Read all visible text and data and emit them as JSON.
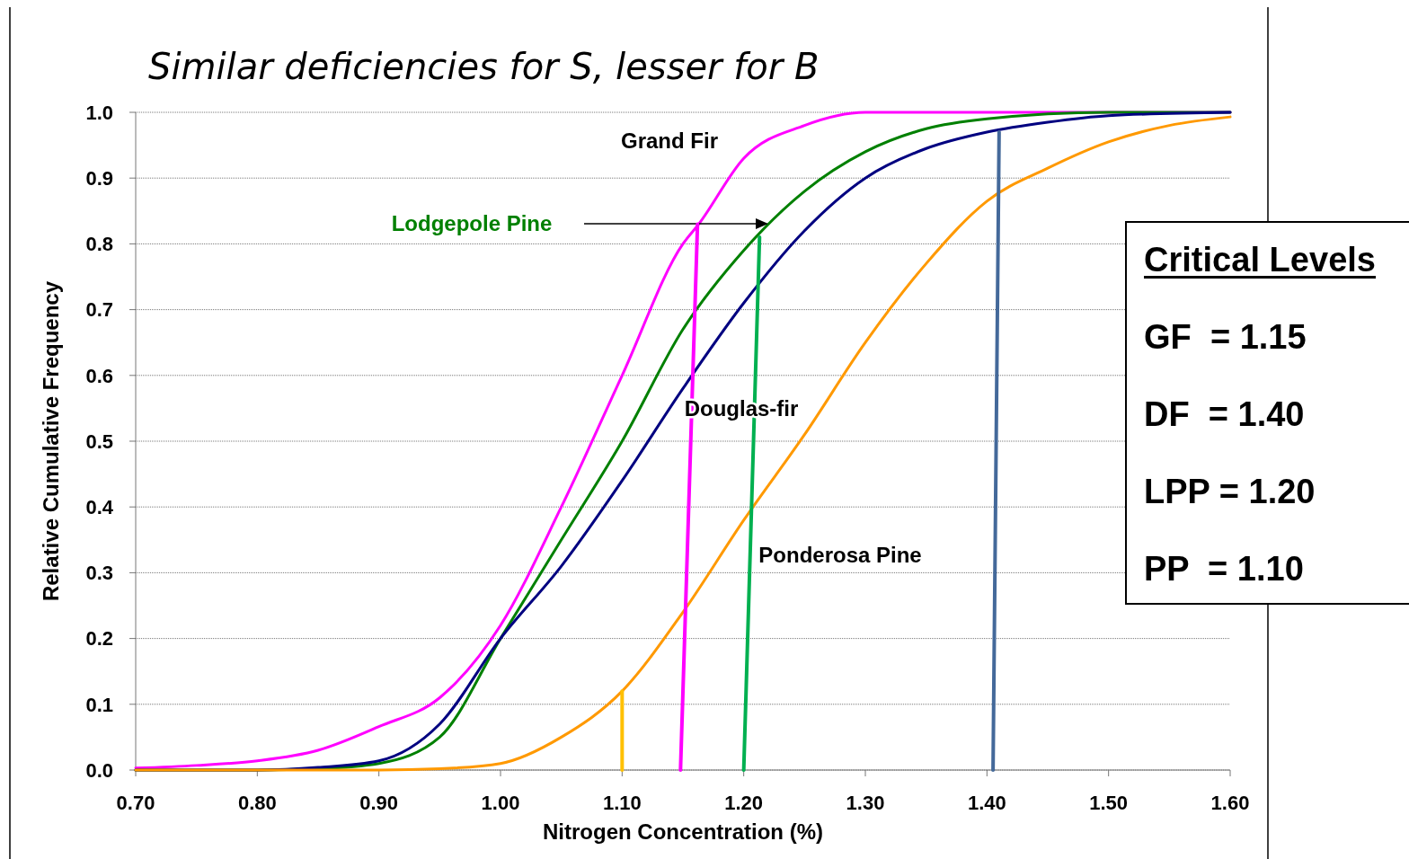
{
  "chart_data": {
    "type": "line",
    "title": "Similar deficiencies for S, lesser for B",
    "xlabel": "Nitrogen Concentration (%)",
    "ylabel": "Relative Cumulative Frequency",
    "xlim": [
      0.7,
      1.6
    ],
    "xticks": [
      {
        "value": 0.7,
        "label": "0.70"
      },
      {
        "value": 0.8,
        "label": "0.80"
      },
      {
        "value": 0.9,
        "label": "0.90"
      },
      {
        "value": 1.0,
        "label": "1.00"
      },
      {
        "value": 1.1,
        "label": "1.10"
      },
      {
        "value": 1.2,
        "label": "1.20"
      },
      {
        "value": 1.3,
        "label": "1.30"
      },
      {
        "value": 1.4,
        "label": "1.40"
      },
      {
        "value": 1.5,
        "label": "1.50"
      },
      {
        "value": 1.6,
        "label": "1.60"
      }
    ],
    "ylim": [
      0,
      1
    ],
    "yticks": [
      {
        "value": 0,
        "label": "0.0"
      },
      {
        "value": 0.1,
        "label": "0.1"
      },
      {
        "value": 0.2,
        "label": "0.2"
      },
      {
        "value": 0.3,
        "label": "0.3"
      },
      {
        "value": 0.4,
        "label": "0.4"
      },
      {
        "value": 0.5,
        "label": "0.5"
      },
      {
        "value": 0.6,
        "label": "0.6"
      },
      {
        "value": 0.7,
        "label": "0.7"
      },
      {
        "value": 0.8,
        "label": "0.8"
      },
      {
        "value": 0.9,
        "label": "0.9"
      },
      {
        "value": 1.0,
        "label": "1.0"
      }
    ],
    "grid": "y",
    "marker": "none",
    "line_style": "solid",
    "series": [
      {
        "name": "Grand Fir",
        "color": "#ff00ff",
        "x": [
          0.7,
          0.75,
          0.8,
          0.85,
          0.9,
          0.95,
          1.0,
          1.05,
          1.1,
          1.15,
          1.163,
          1.2,
          1.25,
          1.3,
          1.6
        ],
        "values": [
          0.003,
          0.007,
          0.014,
          0.03,
          0.066,
          0.11,
          0.22,
          0.4,
          0.6,
          0.8,
          0.83,
          0.93,
          0.98,
          1.0,
          1.0
        ]
      },
      {
        "name": "Lodgepole Pine",
        "color": "#008000",
        "x": [
          0.7,
          0.8,
          0.85,
          0.9,
          0.95,
          1.0,
          1.05,
          1.1,
          1.15,
          1.2,
          1.25,
          1.3,
          1.35,
          1.4,
          1.5,
          1.6
        ],
        "values": [
          0,
          0,
          0.002,
          0.01,
          0.05,
          0.2,
          0.35,
          0.5,
          0.67,
          0.79,
          0.88,
          0.94,
          0.975,
          0.99,
          1.0,
          1.0
        ]
      },
      {
        "name": "Douglas-fir",
        "color": "#000080",
        "x": [
          0.7,
          0.8,
          0.85,
          0.9,
          0.95,
          1.0,
          1.05,
          1.1,
          1.15,
          1.2,
          1.25,
          1.3,
          1.35,
          1.4,
          1.45,
          1.5,
          1.6
        ],
        "values": [
          0,
          0,
          0.004,
          0.014,
          0.07,
          0.2,
          0.31,
          0.44,
          0.58,
          0.71,
          0.82,
          0.9,
          0.945,
          0.97,
          0.985,
          0.995,
          1.0
        ]
      },
      {
        "name": "Ponderosa Pine",
        "color": "#ff9900",
        "x": [
          0.7,
          0.9,
          0.95,
          1.0,
          1.05,
          1.1,
          1.15,
          1.2,
          1.25,
          1.3,
          1.35,
          1.4,
          1.45,
          1.5,
          1.55,
          1.6
        ],
        "values": [
          0,
          0,
          0.002,
          0.01,
          0.05,
          0.12,
          0.24,
          0.38,
          0.51,
          0.65,
          0.77,
          0.865,
          0.915,
          0.955,
          0.98,
          0.993
        ]
      },
      {
        "color": "#ffc000",
        "x": [
          1.1,
          1.1
        ],
        "values": [
          0,
          0.12
        ]
      },
      {
        "color": "#ff00ff",
        "x": [
          1.148,
          1.162
        ],
        "values": [
          0,
          0.83
        ]
      },
      {
        "color": "#00b050",
        "x": [
          1.2,
          1.213
        ],
        "values": [
          0,
          0.81
        ]
      },
      {
        "color": "#44699a",
        "x": [
          1.405,
          1.41
        ],
        "values": [
          0,
          0.97
        ]
      }
    ],
    "annotations": [
      "Critical Levels",
      "GF  = 1.15",
      "DF  = 1.40",
      "LPP = 1.20",
      "PP  = 1.10"
    ]
  }
}
